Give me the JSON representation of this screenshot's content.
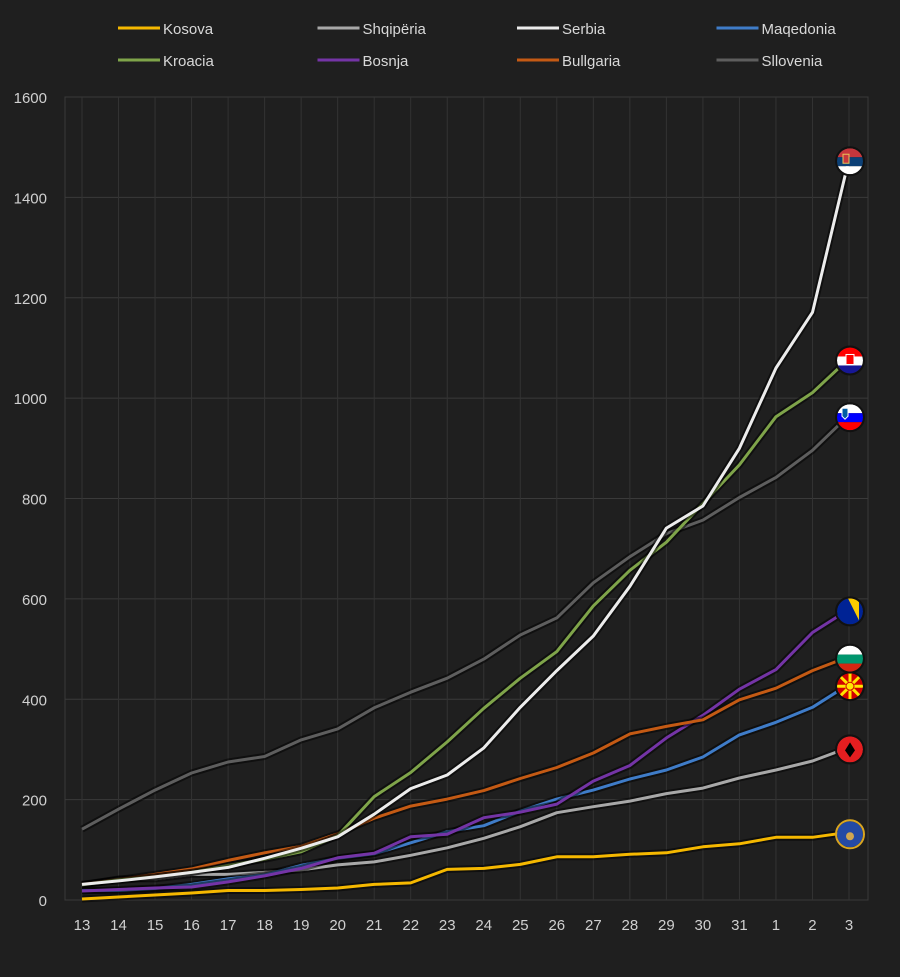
{
  "chart_data": {
    "type": "line",
    "title": "",
    "xlabel": "",
    "ylabel": "",
    "x": [
      "13",
      "14",
      "15",
      "16",
      "17",
      "18",
      "19",
      "20",
      "21",
      "22",
      "23",
      "24",
      "25",
      "26",
      "27",
      "28",
      "29",
      "30",
      "31",
      "1",
      "2",
      "3"
    ],
    "ylim": [
      0,
      1600
    ],
    "yticks": [
      "0",
      "200",
      "400",
      "600",
      "800",
      "1000",
      "1200",
      "1400",
      "1600"
    ],
    "grid": true,
    "legend_position": "top",
    "series": [
      {
        "name": "Kosova",
        "color": "#f5b800",
        "flag": "kosovo-flag-icon",
        "values": [
          2,
          6,
          10,
          14,
          19,
          19,
          21,
          24,
          31,
          34,
          61,
          63,
          71,
          86,
          86,
          91,
          94,
          106,
          112,
          125,
          125,
          135
        ]
      },
      {
        "name": "Shqipëria",
        "color": "#a8a8a8",
        "flag": "albania-flag-icon",
        "values": [
          30,
          42,
          42,
          51,
          51,
          55,
          60,
          70,
          76,
          89,
          104,
          123,
          146,
          174,
          186,
          197,
          212,
          223,
          243,
          259,
          277,
          304
        ]
      },
      {
        "name": "Serbia",
        "color": "#ececec",
        "flag": "serbia-flag-icon",
        "values": [
          31,
          38,
          46,
          55,
          65,
          83,
          103,
          126,
          171,
          222,
          249,
          303,
          384,
          457,
          526,
          625,
          741,
          785,
          900,
          1060,
          1171,
          1476
        ]
      },
      {
        "name": "Maqedonia",
        "color": "#3f7cc8",
        "flag": "north-macedonia-flag-icon",
        "values": [
          19,
          19,
          23,
          31,
          42,
          50,
          69,
          83,
          92,
          114,
          136,
          148,
          177,
          201,
          219,
          241,
          259,
          285,
          329,
          354,
          384,
          430
        ]
      },
      {
        "name": "Kroacia",
        "color": "#7fa44a",
        "flag": "croatia-flag-icon",
        "values": [
          30,
          40,
          46,
          55,
          69,
          81,
          96,
          128,
          206,
          254,
          315,
          382,
          442,
          495,
          586,
          657,
          713,
          790,
          867,
          963,
          1011,
          1079
        ]
      },
      {
        "name": "Bosnja",
        "color": "#7434a6",
        "flag": "bosnia-flag-icon",
        "values": [
          18,
          21,
          24,
          26,
          36,
          48,
          63,
          84,
          93,
          126,
          131,
          164,
          175,
          191,
          237,
          268,
          323,
          368,
          420,
          459,
          533,
          579
        ]
      },
      {
        "name": "Bullgaria",
        "color": "#c45a14",
        "flag": "bulgaria-flag-icon",
        "values": [
          31,
          41,
          51,
          62,
          79,
          94,
          107,
          132,
          163,
          187,
          201,
          218,
          242,
          264,
          293,
          331,
          346,
          359,
          399,
          422,
          457,
          485
        ]
      },
      {
        "name": "Sllovenia",
        "color": "#5e5e5e",
        "flag": "slovenia-flag-icon",
        "values": [
          141,
          181,
          219,
          253,
          275,
          286,
          319,
          341,
          383,
          414,
          442,
          480,
          528,
          562,
          632,
          684,
          730,
          757,
          802,
          842,
          896,
          966
        ]
      }
    ]
  }
}
